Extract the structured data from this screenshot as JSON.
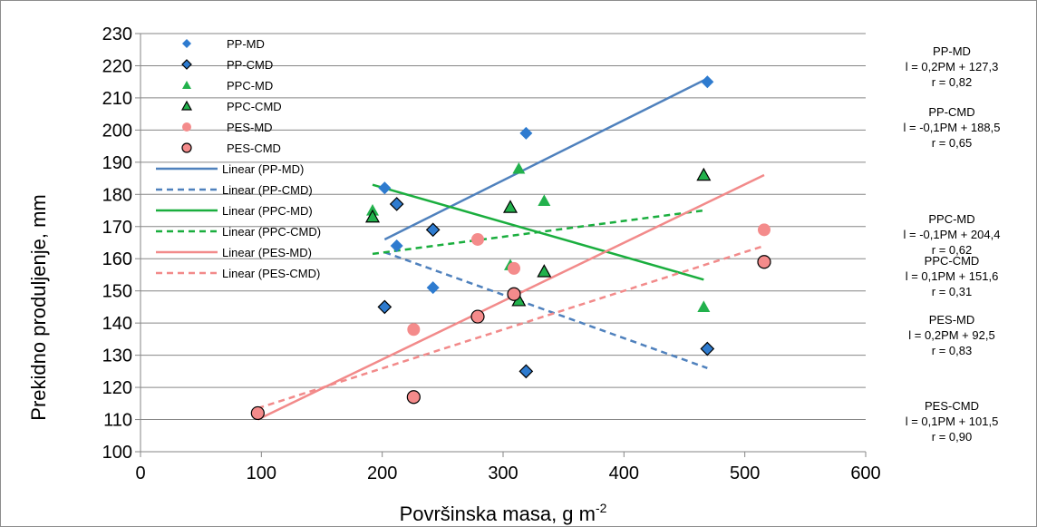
{
  "chart_data": {
    "type": "scatter",
    "xlabel": "Površinska masa, g m",
    "xlabel_sup": "-2",
    "ylabel": "Prekidno produljenje, mm",
    "xlim": [
      0,
      600
    ],
    "ylim": [
      100,
      230
    ],
    "xticks": [
      0,
      100,
      200,
      300,
      400,
      500,
      600
    ],
    "yticks": [
      100,
      110,
      120,
      130,
      140,
      150,
      160,
      170,
      180,
      190,
      200,
      210,
      220,
      230
    ],
    "grid": "horizontal",
    "legend_position": "top-left",
    "series": [
      {
        "name": "PP-MD",
        "marker": "diamond",
        "color": "#2e7bcf",
        "edge": "none",
        "points": [
          [
            202,
            182
          ],
          [
            212,
            164
          ],
          [
            242,
            151
          ],
          [
            319,
            199
          ],
          [
            469,
            215
          ]
        ]
      },
      {
        "name": "PP-CMD",
        "marker": "diamond",
        "color": "#2e7bcf",
        "edge": "#000000",
        "points": [
          [
            202,
            145
          ],
          [
            212,
            177
          ],
          [
            242,
            169
          ],
          [
            319,
            125
          ],
          [
            469,
            132
          ]
        ]
      },
      {
        "name": "PPC-MD",
        "marker": "triangle",
        "color": "#22b14c",
        "edge": "none",
        "points": [
          [
            192,
            175
          ],
          [
            306,
            158
          ],
          [
            313,
            188
          ],
          [
            334,
            178
          ],
          [
            466,
            145
          ]
        ]
      },
      {
        "name": "PPC-CMD",
        "marker": "triangle",
        "color": "#22b14c",
        "edge": "#000000",
        "points": [
          [
            192,
            173
          ],
          [
            306,
            176
          ],
          [
            313,
            147
          ],
          [
            334,
            156
          ],
          [
            466,
            186
          ]
        ]
      },
      {
        "name": "PES-MD",
        "marker": "circle",
        "color": "#f48b8b",
        "edge": "none",
        "points": [
          [
            97,
            112
          ],
          [
            226,
            138
          ],
          [
            279,
            166
          ],
          [
            309,
            157
          ],
          [
            516,
            169
          ]
        ]
      },
      {
        "name": "PES-CMD",
        "marker": "circle",
        "color": "#f48b8b",
        "edge": "#000000",
        "points": [
          [
            97,
            112
          ],
          [
            226,
            117
          ],
          [
            279,
            142
          ],
          [
            309,
            149
          ],
          [
            516,
            159
          ]
        ]
      }
    ],
    "trendlines": [
      {
        "name": "Linear (PP-MD)",
        "color": "#4f81bd",
        "dash": false,
        "from": [
          202,
          166
        ],
        "to": [
          469,
          216
        ]
      },
      {
        "name": "Linear (PP-CMD)",
        "color": "#4f81bd",
        "dash": true,
        "from": [
          202,
          162
        ],
        "to": [
          469,
          126
        ]
      },
      {
        "name": "Linear (PPC-MD)",
        "color": "#1aae3e",
        "dash": false,
        "from": [
          192,
          183
        ],
        "to": [
          466,
          153.5
        ]
      },
      {
        "name": "Linear (PPC-CMD)",
        "color": "#1aae3e",
        "dash": true,
        "from": [
          192,
          161.5
        ],
        "to": [
          466,
          175
        ]
      },
      {
        "name": "Linear (PES-MD)",
        "color": "#f28a8a",
        "dash": false,
        "from": [
          97,
          110
        ],
        "to": [
          516,
          186
        ]
      },
      {
        "name": "Linear (PES-CMD)",
        "color": "#f28a8a",
        "dash": true,
        "from": [
          97,
          113.5
        ],
        "to": [
          516,
          164
        ]
      }
    ],
    "equations": [
      {
        "title": "PP-MD",
        "eq": "l = 0,2PM + 127,3",
        "r": "r = 0,82"
      },
      {
        "title": "PP-CMD",
        "eq": "l = -0,1PM + 188,5",
        "r": "r = 0,65"
      },
      {
        "title": "PPC-MD",
        "eq": "l = -0,1PM + 204,4",
        "r": "r = 0,62"
      },
      {
        "title": "PPC-CMD",
        "eq": "l = 0,1PM + 151,6",
        "r": "r = 0,31"
      },
      {
        "title": "PES-MD",
        "eq": "l = 0,2PM + 92,5",
        "r": "r = 0,83"
      },
      {
        "title": "PES-CMD",
        "eq": "l = 0,1PM + 101,5",
        "r": "r = 0,90"
      }
    ]
  }
}
